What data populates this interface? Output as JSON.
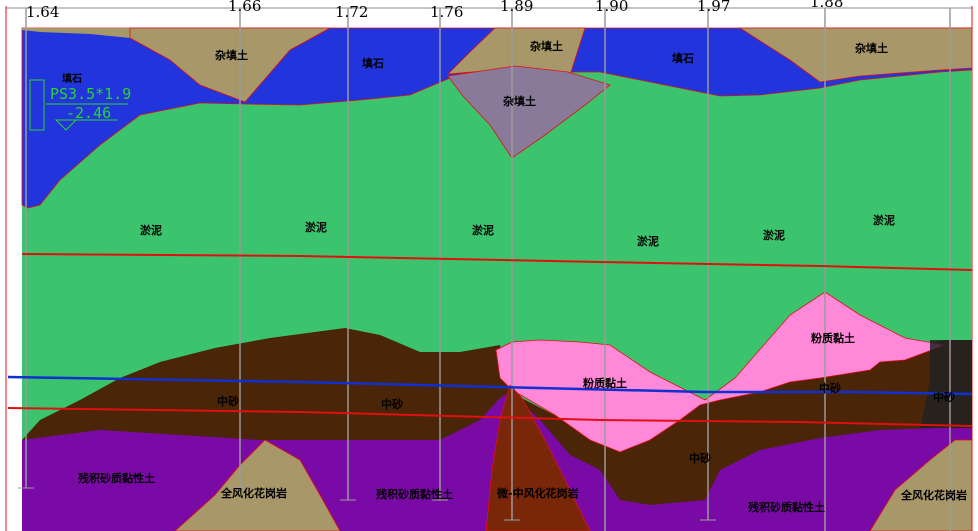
{
  "ticks": [
    {
      "label": "1.64"
    },
    {
      "label": "1.66"
    },
    {
      "label": "1.72"
    },
    {
      "label": "1.76"
    },
    {
      "label": "1.89"
    },
    {
      "label": "1.90"
    },
    {
      "label": "1.97"
    },
    {
      "label": "1.88"
    }
  ],
  "legend": {
    "title": "填石",
    "code": "PS3.5*1.9",
    "elevation": "-2.46"
  },
  "layers": {
    "fill_top_1": "杂填土",
    "fill_top_2": "杂填土",
    "fill_top_3": "杂填土",
    "stone_1": "填石",
    "stone_2": "填石",
    "fill_gray": "杂填土",
    "silt_1": "淤泥",
    "silt_2": "淤泥",
    "silt_3": "淤泥",
    "silt_4": "淤泥",
    "silt_5": "淤泥",
    "silt_6": "淤泥",
    "clay_pink_1": "粉质黏土",
    "clay_pink_2": "粉质黏土",
    "sand_1": "中砂",
    "sand_2": "中砂",
    "sand_3": "中砂",
    "sand_4": "中砂",
    "sand_5": "中砂",
    "purple_1": "残积砂质黏性土",
    "purple_2": "残积砂质黏性土",
    "purple_3": "残积砂质黏性土",
    "granite_1": "全风化花岗岩",
    "granite_2": "全风化花岗岩",
    "granite_red": "微-中风化花岗岩"
  },
  "colors": {
    "stone": "#2235dc",
    "fill": "#a89869",
    "gray_fill": "#8a7a9a",
    "silt": "#3cc36e",
    "clay_pink": "#ff88d8",
    "sand": "#4a2508",
    "purple": "#7a0aa6",
    "granite_red": "#7a2608",
    "line_red": "#e01010",
    "line_blue": "#1030d0"
  }
}
